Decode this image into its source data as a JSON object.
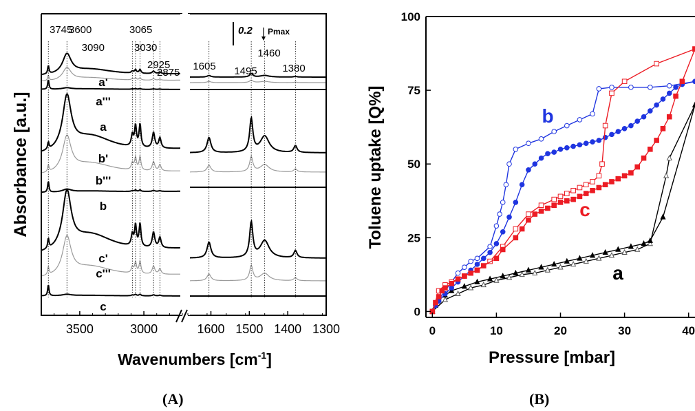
{
  "chart_data": [
    {
      "type": "line",
      "panel": "(A)",
      "xlabel": "Wavenumbers [cm",
      "xlabel_sup": "-1",
      "xlabel_close": "]",
      "ylabel": "Absorbance [a.u.]",
      "x_segments": [
        {
          "xlim": [
            3800,
            2700
          ],
          "ticks": [
            3500,
            3000
          ]
        },
        {
          "xlim": [
            1660,
            1300
          ],
          "ticks": [
            1600,
            1500,
            1400,
            1300
          ]
        }
      ],
      "axis_break": "//",
      "scale_bar": {
        "value": "0.2",
        "label": "Pmax"
      },
      "peak_labels": [
        "3745",
        "3600",
        "3090",
        "3065",
        "3030",
        "2925",
        "2875",
        "1605",
        "1495",
        "1460",
        "1380"
      ],
      "peak_positions": [
        3745,
        3600,
        3090,
        3065,
        3030,
        2925,
        2875,
        1605,
        1495,
        1460,
        1380
      ],
      "spectra": [
        {
          "label": "a'",
          "group": "a",
          "role": "bold"
        },
        {
          "label": "a'''",
          "group": "a",
          "role": "gray"
        },
        {
          "label": "a",
          "group": "a",
          "role": "base"
        },
        {
          "label": "b'",
          "group": "b",
          "role": "bold"
        },
        {
          "label": "b'''",
          "group": "b",
          "role": "gray"
        },
        {
          "label": "b",
          "group": "b",
          "role": "base"
        },
        {
          "label": "c'",
          "group": "c",
          "role": "bold"
        },
        {
          "label": "c'''",
          "group": "c",
          "role": "gray"
        },
        {
          "label": "c",
          "group": "c",
          "role": "base"
        }
      ],
      "axis_color": "#000000",
      "curve_gray": "#9a9a9a"
    },
    {
      "type": "scatter",
      "panel": "(B)",
      "xlabel": "Pressure [mbar]",
      "ylabel": "Toluene uptake [Q%]",
      "xlim": [
        -1,
        41
      ],
      "ylim": [
        -2,
        100
      ],
      "xticks": [
        "0",
        "10",
        "20",
        "30",
        "40"
      ],
      "yticks": [
        "0",
        "25",
        "50",
        "75",
        "100"
      ],
      "series": [
        {
          "name": "a",
          "label_color": "#000000",
          "color": "#000000",
          "adsorption": [
            [
              0,
              0
            ],
            [
              0.5,
              2
            ],
            [
              1,
              4
            ],
            [
              2,
              5.5
            ],
            [
              3,
              7
            ],
            [
              5,
              8.5
            ],
            [
              7,
              10
            ],
            [
              9,
              11
            ],
            [
              11,
              12
            ],
            [
              13,
              13
            ],
            [
              15,
              14
            ],
            [
              17,
              15
            ],
            [
              19,
              16
            ],
            [
              21,
              17
            ],
            [
              23,
              18
            ],
            [
              25,
              19
            ],
            [
              27,
              20
            ],
            [
              29,
              21
            ],
            [
              31,
              22
            ],
            [
              33,
              23
            ],
            [
              34,
              24
            ],
            [
              36,
              32
            ],
            [
              41,
              70
            ]
          ],
          "desorption": [
            [
              41,
              70
            ],
            [
              37,
              52
            ],
            [
              36.5,
              46
            ],
            [
              34,
              23
            ],
            [
              32,
              21
            ],
            [
              30,
              20
            ],
            [
              28,
              19
            ],
            [
              26,
              18
            ],
            [
              24,
              17
            ],
            [
              22,
              16
            ],
            [
              20,
              15
            ],
            [
              18,
              14
            ],
            [
              16,
              13
            ],
            [
              14,
              12.5
            ],
            [
              12,
              11.5
            ],
            [
              10,
              10.5
            ],
            [
              8,
              9
            ],
            [
              6,
              8
            ],
            [
              4,
              6
            ],
            [
              2,
              4
            ],
            [
              0,
              0
            ]
          ]
        },
        {
          "name": "b",
          "label_color": "#1f35e0",
          "color": "#1f35e0",
          "adsorption": [
            [
              0,
              0
            ],
            [
              0.5,
              2
            ],
            [
              1,
              3.5
            ],
            [
              2,
              6
            ],
            [
              3,
              8
            ],
            [
              4,
              10
            ],
            [
              5,
              12
            ],
            [
              6,
              14
            ],
            [
              7,
              16
            ],
            [
              8,
              18
            ],
            [
              9,
              20
            ],
            [
              10,
              23
            ],
            [
              11,
              27
            ],
            [
              12,
              32
            ],
            [
              13,
              37
            ],
            [
              14,
              43
            ],
            [
              15,
              48
            ],
            [
              16,
              50
            ],
            [
              17,
              52
            ],
            [
              18,
              53.5
            ],
            [
              19,
              54
            ],
            [
              20,
              55
            ],
            [
              21,
              55.5
            ],
            [
              22,
              56
            ],
            [
              23,
              56.5
            ],
            [
              24,
              57
            ],
            [
              25,
              57.5
            ],
            [
              26,
              58
            ],
            [
              27,
              59
            ],
            [
              28,
              60
            ],
            [
              29,
              61
            ],
            [
              30,
              62
            ],
            [
              31,
              63
            ],
            [
              32,
              64.5
            ],
            [
              33,
              66
            ],
            [
              34,
              68
            ],
            [
              35,
              70
            ],
            [
              36,
              72
            ],
            [
              37,
              74
            ],
            [
              38,
              76
            ],
            [
              39,
              77
            ],
            [
              41,
              78
            ]
          ],
          "desorption": [
            [
              41,
              78
            ],
            [
              37,
              76.5
            ],
            [
              34,
              76
            ],
            [
              31,
              76
            ],
            [
              28,
              76
            ],
            [
              26,
              75.5
            ],
            [
              25,
              67
            ],
            [
              23,
              65
            ],
            [
              21,
              63
            ],
            [
              19,
              61
            ],
            [
              17,
              58.5
            ],
            [
              15,
              57
            ],
            [
              13,
              55
            ],
            [
              12,
              50
            ],
            [
              11.5,
              43
            ],
            [
              11,
              37
            ],
            [
              10.5,
              33
            ],
            [
              10,
              29
            ],
            [
              9,
              22
            ],
            [
              7,
              18
            ],
            [
              6,
              17
            ],
            [
              5,
              15
            ],
            [
              4,
              13
            ],
            [
              3,
              10
            ],
            [
              2,
              7
            ],
            [
              1,
              4
            ],
            [
              0,
              0
            ]
          ]
        },
        {
          "name": "c",
          "label_color": "#ec1c24",
          "color": "#ec1c24",
          "adsorption": [
            [
              0,
              0
            ],
            [
              0.5,
              3
            ],
            [
              1,
              5
            ],
            [
              1.5,
              7
            ],
            [
              2,
              8
            ],
            [
              3,
              9.5
            ],
            [
              4,
              11
            ],
            [
              5,
              12
            ],
            [
              6,
              13
            ],
            [
              7,
              14
            ],
            [
              8,
              15.5
            ],
            [
              10,
              18
            ],
            [
              11,
              21
            ],
            [
              13,
              25
            ],
            [
              14,
              28
            ],
            [
              15,
              31
            ],
            [
              16,
              33
            ],
            [
              17,
              34
            ],
            [
              18,
              35
            ],
            [
              19,
              36
            ],
            [
              20,
              37
            ],
            [
              21,
              37.5
            ],
            [
              22,
              38
            ],
            [
              23,
              39
            ],
            [
              24,
              40
            ],
            [
              25,
              41
            ],
            [
              26,
              42
            ],
            [
              27,
              43
            ],
            [
              28,
              44
            ],
            [
              29,
              45
            ],
            [
              30,
              46
            ],
            [
              31,
              47
            ],
            [
              32,
              49
            ],
            [
              33,
              52
            ],
            [
              34,
              55
            ],
            [
              35,
              58
            ],
            [
              36,
              62
            ],
            [
              37,
              66
            ],
            [
              38,
              73
            ],
            [
              39,
              78
            ],
            [
              41,
              89
            ]
          ],
          "desorption": [
            [
              41,
              89
            ],
            [
              35,
              84
            ],
            [
              30,
              78
            ],
            [
              28,
              74
            ],
            [
              27,
              63
            ],
            [
              26.5,
              50
            ],
            [
              26,
              46
            ],
            [
              25,
              44
            ],
            [
              24,
              43
            ],
            [
              23,
              42
            ],
            [
              22,
              41
            ],
            [
              21,
              40
            ],
            [
              20,
              39
            ],
            [
              19,
              38
            ],
            [
              17,
              36
            ],
            [
              15,
              33
            ],
            [
              13,
              28
            ],
            [
              11,
              22
            ],
            [
              9,
              17
            ],
            [
              7,
              14
            ],
            [
              5,
              12
            ],
            [
              3,
              10
            ],
            [
              2,
              9
            ],
            [
              1,
              7
            ],
            [
              0,
              0
            ]
          ]
        }
      ],
      "axis_color": "#000000"
    }
  ],
  "panel_labels": {
    "a": "(A)",
    "b": "(B)"
  }
}
